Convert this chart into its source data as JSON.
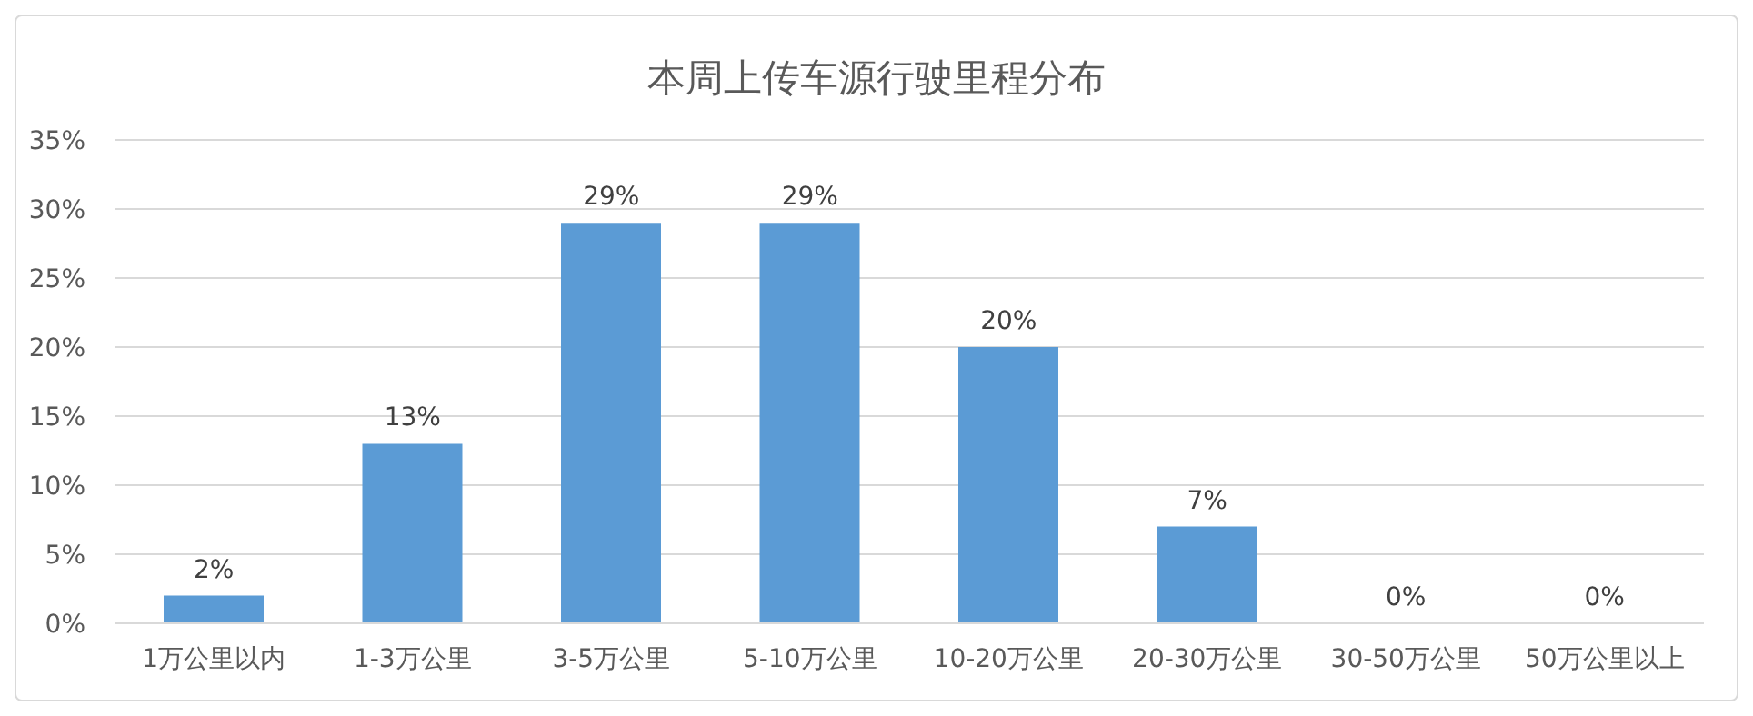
{
  "chart_data": {
    "type": "bar",
    "title": "本周上传车源行驶里程分布",
    "categories": [
      "1万公里以内",
      "1-3万公里",
      "3-5万公里",
      "5-10万公里",
      "10-20万公里",
      "20-30万公里",
      "30-50万公里",
      "50万公里以上"
    ],
    "values": [
      2,
      13,
      29,
      29,
      20,
      7,
      0,
      0
    ],
    "value_labels": [
      "2%",
      "13%",
      "29%",
      "29%",
      "20%",
      "7%",
      "0%",
      "0%"
    ],
    "color": "#5b9bd5",
    "ylim": [
      0,
      35
    ],
    "yticks": [
      {
        "value": 0,
        "label": "0%"
      },
      {
        "value": 5,
        "label": "5%"
      },
      {
        "value": 10,
        "label": "10%"
      },
      {
        "value": 15,
        "label": "15%"
      },
      {
        "value": 20,
        "label": "20%"
      },
      {
        "value": 25,
        "label": "25%"
      },
      {
        "value": 30,
        "label": "30%"
      },
      {
        "value": 35,
        "label": "35%"
      }
    ],
    "grid": "y",
    "legend": false
  }
}
